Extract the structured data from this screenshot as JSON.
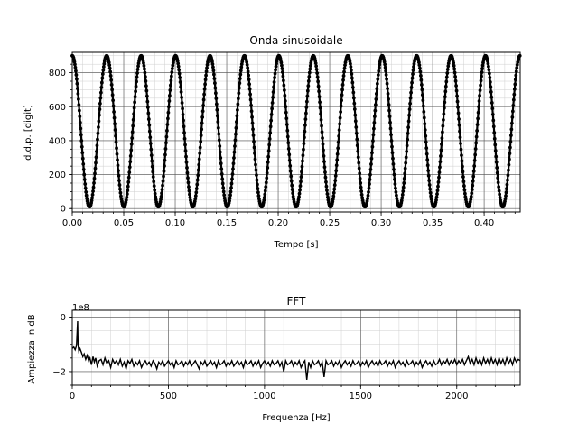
{
  "chart_data": [
    {
      "type": "scatter",
      "title": "Onda sinusoidale",
      "xlabel": "Tempo [s]",
      "ylabel": "d.d.p. [digit]",
      "xlim": [
        0.0,
        0.435
      ],
      "ylim": [
        -20,
        920
      ],
      "xticks": [
        0.0,
        0.05,
        0.1,
        0.15,
        0.2,
        0.25,
        0.3,
        0.35,
        0.4
      ],
      "xtick_labels": [
        "0.00",
        "0.05",
        "0.10",
        "0.15",
        "0.20",
        "0.25",
        "0.30",
        "0.35",
        "0.40"
      ],
      "yticks": [
        0,
        200,
        400,
        600,
        800
      ],
      "ytick_labels": [
        "0",
        "200",
        "400",
        "600",
        "800"
      ],
      "grid": true,
      "series": [
        {
          "frequency_hz": 29.9,
          "offset": 455,
          "amplitude": 445,
          "phase_peak_time": 0.0,
          "sample_step_s": 0.00043,
          "color": "#000000"
        }
      ]
    },
    {
      "type": "line",
      "title": "FFT",
      "xlabel": "Frequenza [Hz]",
      "ylabel": "Ampiezza in dB",
      "offset_text": "1e8",
      "xlim": [
        0,
        2330
      ],
      "ylim": [
        -2.5,
        0.25
      ],
      "xticks": [
        0,
        500,
        1000,
        1500,
        2000
      ],
      "xtick_labels": [
        "0",
        "500",
        "1000",
        "1500",
        "2000"
      ],
      "yticks": [
        0,
        -2
      ],
      "ytick_labels": [
        "0",
        "−2"
      ],
      "grid": true,
      "series": [
        {
          "color": "#000000",
          "points": [
            [
              0,
              -1.15
            ],
            [
              8,
              -1.1
            ],
            [
              15,
              -1.2
            ],
            [
              22,
              -1.05
            ],
            [
              28,
              -0.15
            ],
            [
              30,
              -1.0
            ],
            [
              34,
              -1.25
            ],
            [
              40,
              -1.15
            ],
            [
              48,
              -1.3
            ],
            [
              55,
              -1.45
            ],
            [
              62,
              -1.35
            ],
            [
              70,
              -1.55
            ],
            [
              78,
              -1.4
            ],
            [
              85,
              -1.6
            ],
            [
              92,
              -1.5
            ],
            [
              100,
              -1.75
            ],
            [
              108,
              -1.45
            ],
            [
              115,
              -1.65
            ],
            [
              122,
              -1.5
            ],
            [
              130,
              -1.8
            ],
            [
              140,
              -1.6
            ],
            [
              150,
              -1.55
            ],
            [
              160,
              -1.75
            ],
            [
              170,
              -1.5
            ],
            [
              180,
              -1.7
            ],
            [
              190,
              -1.6
            ],
            [
              200,
              -1.85
            ],
            [
              210,
              -1.55
            ],
            [
              220,
              -1.7
            ],
            [
              230,
              -1.6
            ],
            [
              240,
              -1.75
            ],
            [
              250,
              -1.55
            ],
            [
              260,
              -1.8
            ],
            [
              270,
              -1.65
            ],
            [
              280,
              -1.9
            ],
            [
              290,
              -1.6
            ],
            [
              300,
              -1.7
            ],
            [
              310,
              -1.55
            ],
            [
              320,
              -1.8
            ],
            [
              330,
              -1.65
            ],
            [
              340,
              -1.75
            ],
            [
              350,
              -1.6
            ],
            [
              360,
              -1.85
            ],
            [
              370,
              -1.7
            ],
            [
              380,
              -1.6
            ],
            [
              390,
              -1.75
            ],
            [
              400,
              -1.65
            ],
            [
              410,
              -1.8
            ],
            [
              420,
              -1.6
            ],
            [
              430,
              -1.7
            ],
            [
              440,
              -1.9
            ],
            [
              450,
              -1.65
            ],
            [
              460,
              -1.75
            ],
            [
              470,
              -1.6
            ],
            [
              480,
              -1.8
            ],
            [
              490,
              -1.7
            ],
            [
              500,
              -1.6
            ],
            [
              510,
              -1.75
            ],
            [
              520,
              -1.65
            ],
            [
              530,
              -1.85
            ],
            [
              540,
              -1.6
            ],
            [
              550,
              -1.75
            ],
            [
              560,
              -1.7
            ],
            [
              570,
              -1.6
            ],
            [
              580,
              -1.8
            ],
            [
              590,
              -1.65
            ],
            [
              600,
              -1.75
            ],
            [
              610,
              -1.6
            ],
            [
              620,
              -1.8
            ],
            [
              630,
              -1.7
            ],
            [
              640,
              -1.6
            ],
            [
              650,
              -1.75
            ],
            [
              660,
              -1.9
            ],
            [
              670,
              -1.65
            ],
            [
              680,
              -1.75
            ],
            [
              690,
              -1.6
            ],
            [
              700,
              -1.8
            ],
            [
              710,
              -1.7
            ],
            [
              720,
              -1.6
            ],
            [
              730,
              -1.75
            ],
            [
              740,
              -1.65
            ],
            [
              750,
              -1.85
            ],
            [
              760,
              -1.6
            ],
            [
              770,
              -1.75
            ],
            [
              780,
              -1.7
            ],
            [
              790,
              -1.6
            ],
            [
              800,
              -1.8
            ],
            [
              810,
              -1.65
            ],
            [
              820,
              -1.75
            ],
            [
              830,
              -1.6
            ],
            [
              840,
              -1.8
            ],
            [
              850,
              -1.7
            ],
            [
              860,
              -1.6
            ],
            [
              870,
              -1.75
            ],
            [
              880,
              -1.65
            ],
            [
              890,
              -1.85
            ],
            [
              900,
              -1.6
            ],
            [
              910,
              -1.75
            ],
            [
              920,
              -1.7
            ],
            [
              930,
              -1.6
            ],
            [
              940,
              -1.8
            ],
            [
              950,
              -1.65
            ],
            [
              960,
              -1.75
            ],
            [
              970,
              -1.6
            ],
            [
              980,
              -1.85
            ],
            [
              990,
              -1.7
            ],
            [
              1000,
              -1.6
            ],
            [
              1010,
              -1.75
            ],
            [
              1020,
              -1.65
            ],
            [
              1030,
              -1.8
            ],
            [
              1040,
              -1.6
            ],
            [
              1050,
              -1.75
            ],
            [
              1060,
              -1.7
            ],
            [
              1070,
              -1.6
            ],
            [
              1080,
              -1.8
            ],
            [
              1090,
              -1.65
            ],
            [
              1100,
              -2.0
            ],
            [
              1110,
              -1.6
            ],
            [
              1120,
              -1.75
            ],
            [
              1130,
              -1.7
            ],
            [
              1140,
              -1.6
            ],
            [
              1150,
              -1.8
            ],
            [
              1160,
              -1.65
            ],
            [
              1170,
              -1.75
            ],
            [
              1180,
              -1.6
            ],
            [
              1190,
              -1.85
            ],
            [
              1200,
              -1.7
            ],
            [
              1210,
              -1.6
            ],
            [
              1220,
              -2.3
            ],
            [
              1230,
              -1.65
            ],
            [
              1240,
              -1.85
            ],
            [
              1250,
              -1.6
            ],
            [
              1260,
              -1.75
            ],
            [
              1270,
              -1.7
            ],
            [
              1280,
              -1.6
            ],
            [
              1290,
              -1.8
            ],
            [
              1300,
              -1.65
            ],
            [
              1310,
              -2.2
            ],
            [
              1320,
              -1.6
            ],
            [
              1330,
              -1.75
            ],
            [
              1340,
              -1.7
            ],
            [
              1350,
              -1.6
            ],
            [
              1360,
              -1.8
            ],
            [
              1370,
              -1.65
            ],
            [
              1380,
              -1.75
            ],
            [
              1390,
              -1.6
            ],
            [
              1400,
              -1.85
            ],
            [
              1410,
              -1.7
            ],
            [
              1420,
              -1.6
            ],
            [
              1430,
              -1.75
            ],
            [
              1440,
              -1.65
            ],
            [
              1450,
              -1.8
            ],
            [
              1460,
              -1.6
            ],
            [
              1470,
              -1.75
            ],
            [
              1480,
              -1.7
            ],
            [
              1490,
              -1.6
            ],
            [
              1500,
              -1.8
            ],
            [
              1510,
              -1.65
            ],
            [
              1520,
              -1.75
            ],
            [
              1530,
              -1.6
            ],
            [
              1540,
              -1.85
            ],
            [
              1550,
              -1.7
            ],
            [
              1560,
              -1.6
            ],
            [
              1570,
              -1.75
            ],
            [
              1580,
              -1.65
            ],
            [
              1590,
              -1.8
            ],
            [
              1600,
              -1.6
            ],
            [
              1610,
              -1.75
            ],
            [
              1620,
              -1.7
            ],
            [
              1630,
              -1.6
            ],
            [
              1640,
              -1.8
            ],
            [
              1650,
              -1.65
            ],
            [
              1660,
              -1.75
            ],
            [
              1670,
              -1.6
            ],
            [
              1680,
              -1.85
            ],
            [
              1690,
              -1.7
            ],
            [
              1700,
              -1.6
            ],
            [
              1710,
              -1.75
            ],
            [
              1720,
              -1.65
            ],
            [
              1730,
              -1.8
            ],
            [
              1740,
              -1.6
            ],
            [
              1750,
              -1.75
            ],
            [
              1760,
              -1.7
            ],
            [
              1770,
              -1.6
            ],
            [
              1780,
              -1.8
            ],
            [
              1790,
              -1.65
            ],
            [
              1800,
              -1.75
            ],
            [
              1810,
              -1.6
            ],
            [
              1820,
              -1.85
            ],
            [
              1830,
              -1.7
            ],
            [
              1840,
              -1.6
            ],
            [
              1850,
              -1.75
            ],
            [
              1860,
              -1.65
            ],
            [
              1870,
              -1.8
            ],
            [
              1880,
              -1.6
            ],
            [
              1890,
              -1.75
            ],
            [
              1900,
              -1.7
            ],
            [
              1910,
              -1.55
            ],
            [
              1920,
              -1.75
            ],
            [
              1930,
              -1.6
            ],
            [
              1940,
              -1.7
            ],
            [
              1950,
              -1.55
            ],
            [
              1960,
              -1.75
            ],
            [
              1970,
              -1.6
            ],
            [
              1980,
              -1.7
            ],
            [
              1990,
              -1.55
            ],
            [
              2000,
              -1.75
            ],
            [
              2010,
              -1.6
            ],
            [
              2020,
              -1.7
            ],
            [
              2030,
              -1.55
            ],
            [
              2040,
              -1.75
            ],
            [
              2050,
              -1.6
            ],
            [
              2060,
              -1.45
            ],
            [
              2070,
              -1.7
            ],
            [
              2080,
              -1.55
            ],
            [
              2090,
              -1.75
            ],
            [
              2100,
              -1.5
            ],
            [
              2110,
              -1.7
            ],
            [
              2120,
              -1.55
            ],
            [
              2130,
              -1.75
            ],
            [
              2140,
              -1.5
            ],
            [
              2150,
              -1.7
            ],
            [
              2160,
              -1.55
            ],
            [
              2170,
              -1.75
            ],
            [
              2180,
              -1.5
            ],
            [
              2190,
              -1.7
            ],
            [
              2200,
              -1.55
            ],
            [
              2210,
              -1.75
            ],
            [
              2220,
              -1.5
            ],
            [
              2230,
              -1.7
            ],
            [
              2240,
              -1.55
            ],
            [
              2250,
              -1.75
            ],
            [
              2260,
              -1.5
            ],
            [
              2270,
              -1.7
            ],
            [
              2280,
              -1.55
            ],
            [
              2290,
              -1.75
            ],
            [
              2300,
              -1.5
            ],
            [
              2310,
              -1.65
            ],
            [
              2320,
              -1.55
            ],
            [
              2330,
              -1.6
            ]
          ]
        }
      ]
    }
  ]
}
